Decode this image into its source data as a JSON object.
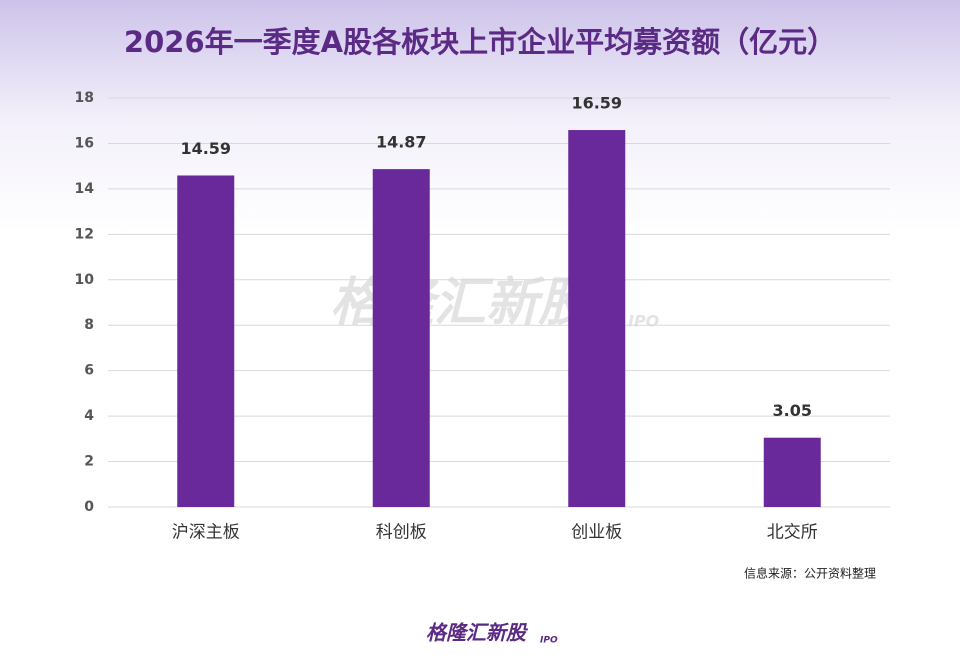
{
  "chart_data": {
    "type": "bar",
    "title": "2026年一季度A股各板块上市企业平均募资额（亿元）",
    "categories": [
      "沪深主板",
      "科创板",
      "创业板",
      "北交所"
    ],
    "values": [
      14.59,
      14.87,
      16.59,
      3.05
    ],
    "color": "#69299b",
    "ylim": [
      0,
      18
    ],
    "yticks": [
      0,
      2,
      4,
      6,
      8,
      10,
      12,
      14,
      16,
      18
    ],
    "grid": true,
    "source": "信息来源：公开资料整理",
    "watermark": {
      "name": "格隆汇新股",
      "tag": "IPO"
    },
    "logo": {
      "name": "格隆汇新股",
      "tag": "IPO"
    }
  }
}
